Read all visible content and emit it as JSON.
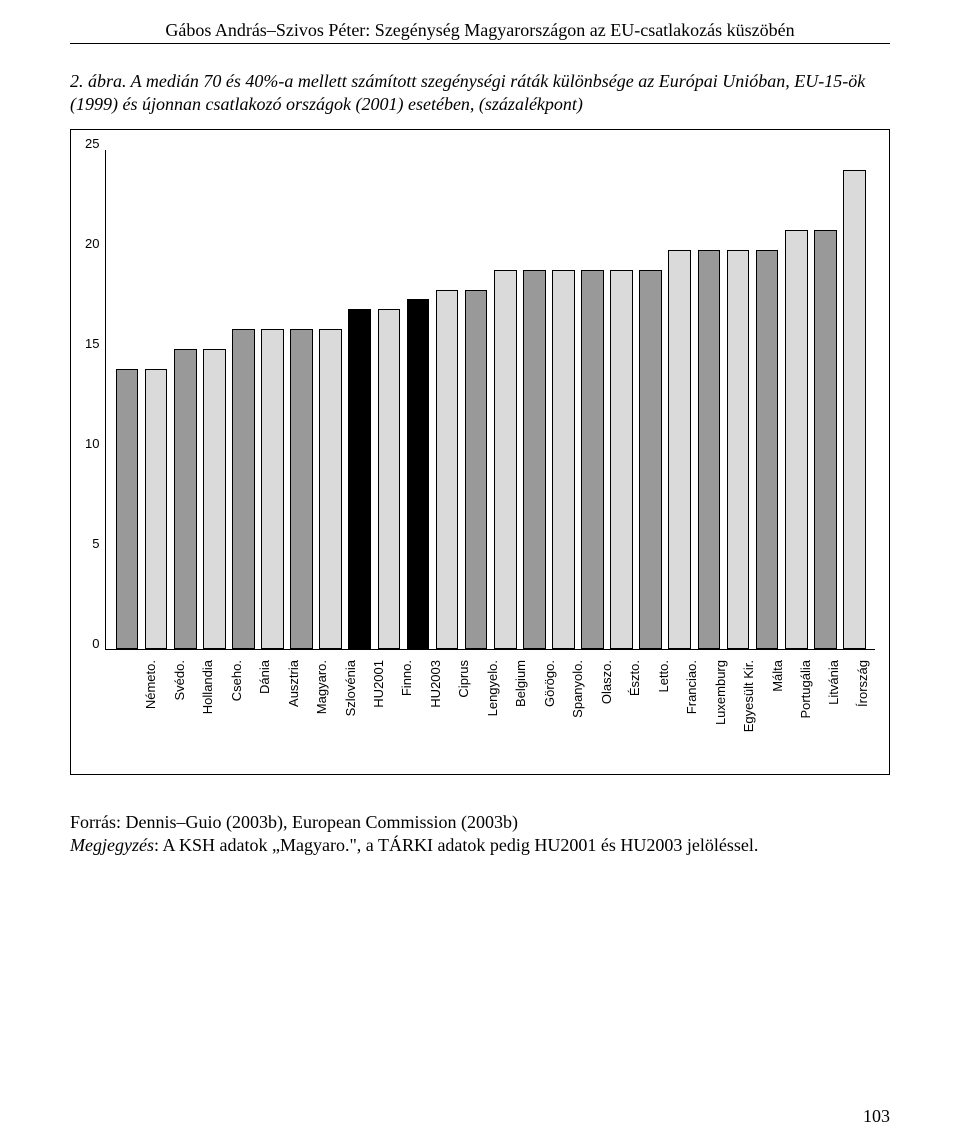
{
  "header": "Gábos András–Szivos Péter: Szegénység Magyarországon az EU-csatlakozás küszöbén",
  "caption": "2. ábra. A medián 70 és 40%-a mellett számított szegénységi ráták különbsége az Európai Unióban, EU-15-ök (1999) és újonnan csatlakozó országok (2001) esetében, (százalékpont)",
  "chart": {
    "type": "bar",
    "ylim": [
      0,
      25
    ],
    "yticks": [
      0,
      5,
      10,
      15,
      20,
      25
    ],
    "ytick_labels": [
      "0",
      "5",
      "10",
      "15",
      "20",
      "25"
    ],
    "axis_color": "#000000",
    "background_color": "#ffffff",
    "categories": [
      "Németo.",
      "Svédo.",
      "Hollandia",
      "Cseho.",
      "Dánia",
      "Ausztria",
      "Magyaro.",
      "Szlovénia",
      "HU2001",
      "Finno.",
      "HU2003",
      "Ciprus",
      "Lengyelo.",
      "Belgium",
      "Görögo.",
      "Spanyolo.",
      "Olaszo.",
      "Észto.",
      "Letto.",
      "Franciao.",
      "Luxemburg",
      "Egyesült Kir.",
      "Málta",
      "Portugália",
      "Litvánia",
      "Írország"
    ],
    "values": [
      14.0,
      14.0,
      15.0,
      15.0,
      16.0,
      16.0,
      16.0,
      16.0,
      17.0,
      17.0,
      17.5,
      18.0,
      18.0,
      19.0,
      19.0,
      19.0,
      19.0,
      19.0,
      19.0,
      20.0,
      20.0,
      20.0,
      20.0,
      21.0,
      21.0,
      24.0
    ],
    "fill_colors": [
      "#999999",
      "#dadada",
      "#999999",
      "#dadada",
      "#999999",
      "#dadada",
      "#999999",
      "#dadada",
      "#000000",
      "#dadada",
      "#000000",
      "#dadada",
      "#999999",
      "#dadada",
      "#999999",
      "#dadada",
      "#999999",
      "#dadada",
      "#999999",
      "#dadada",
      "#999999",
      "#dadada",
      "#999999",
      "#dadada",
      "#999999",
      "#dadada"
    ],
    "bar_border_color": "#000000",
    "label_font_family": "Arial",
    "label_font_size": 13
  },
  "footer": {
    "source_label": "Forrás",
    "source_text": ": Dennis–Guio (2003b), European Commission (2003b)",
    "note_label": "Megjegyzés",
    "note_text": ": A KSH adatok „Magyaro.\", a TÁRKI adatok pedig HU2001 és HU2003 jelöléssel."
  },
  "page_number": "103"
}
